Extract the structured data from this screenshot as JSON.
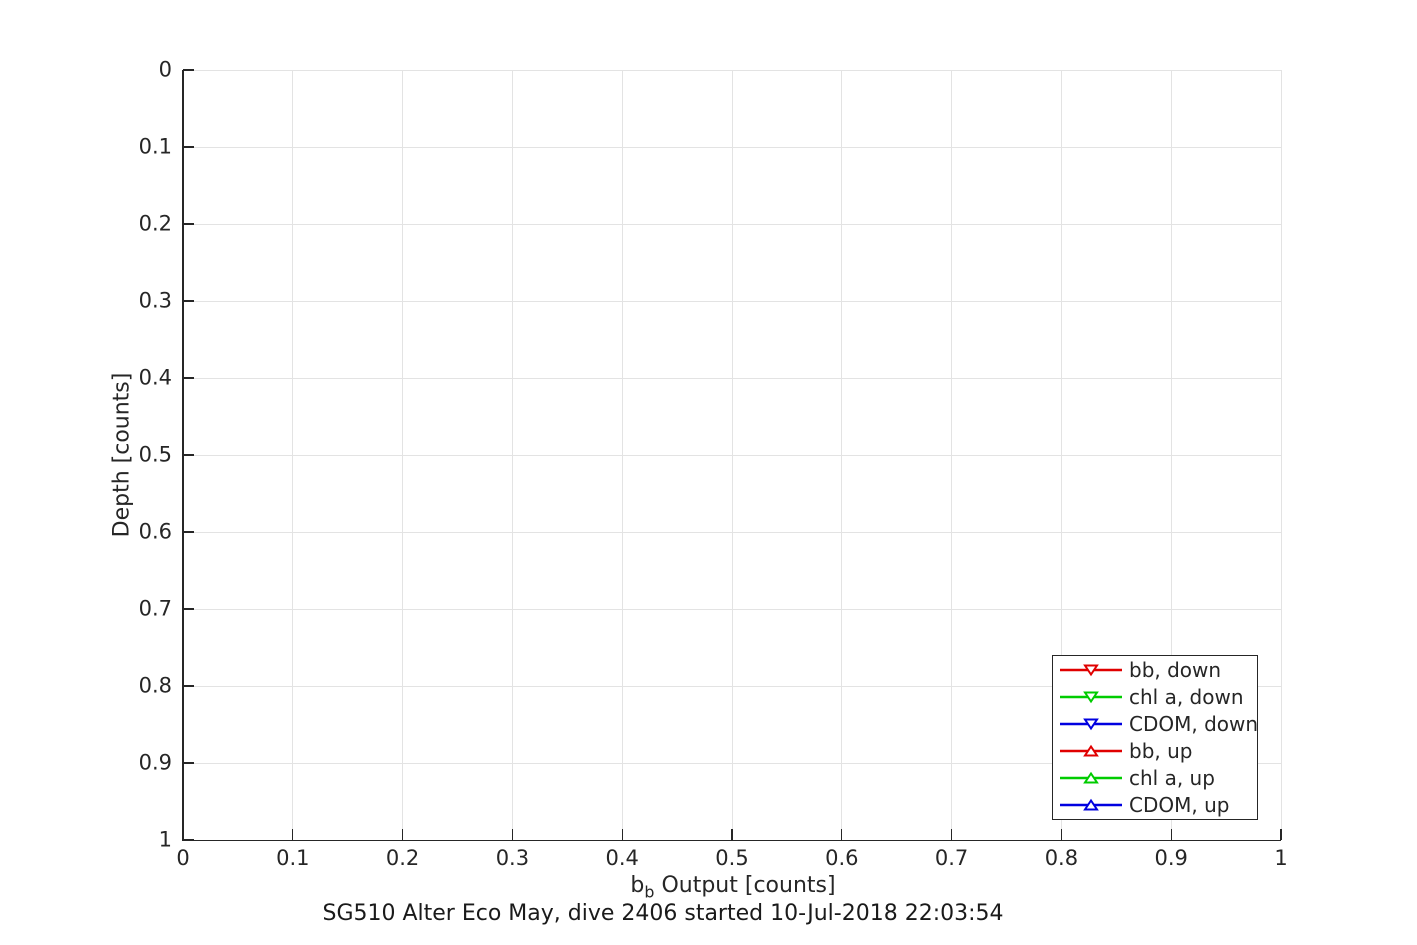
{
  "figure": {
    "background_color": "#ffffff",
    "axis_color": "#262626",
    "grid_color": "#e3e3e3",
    "text_color": "#262626",
    "legend_border_color": "#262626"
  },
  "chart_data": {
    "type": "scatter",
    "title": "SG510 Alter Eco May, dive 2406 started 10-Jul-2018 22:03:54",
    "xlabel": "b_b Output [counts]",
    "xlabel_parts": {
      "base": "b",
      "sub": "b",
      "rest": " Output [counts]"
    },
    "ylabel": "Depth [counts]",
    "xlim": [
      0,
      1
    ],
    "ylim": [
      0,
      1
    ],
    "y_axis_reversed": true,
    "grid": true,
    "x_ticks": [
      "0",
      "0.1",
      "0.2",
      "0.3",
      "0.4",
      "0.5",
      "0.6",
      "0.7",
      "0.8",
      "0.9",
      "1"
    ],
    "y_ticks": [
      "0",
      "0.1",
      "0.2",
      "0.3",
      "0.4",
      "0.5",
      "0.6",
      "0.7",
      "0.8",
      "0.9",
      "1"
    ],
    "legend_position": "inside-bottom-right",
    "series": [
      {
        "name": "bb, down",
        "color": "#e00000",
        "marker": "triangle-down",
        "x": [],
        "y": []
      },
      {
        "name": "chl a, down",
        "color": "#00cc00",
        "marker": "triangle-down",
        "x": [],
        "y": []
      },
      {
        "name": "CDOM, down",
        "color": "#0000e0",
        "marker": "triangle-down",
        "x": [],
        "y": []
      },
      {
        "name": "bb, up",
        "color": "#e00000",
        "marker": "triangle-up",
        "x": [],
        "y": []
      },
      {
        "name": "chl a, up",
        "color": "#00cc00",
        "marker": "triangle-up",
        "x": [],
        "y": []
      },
      {
        "name": "CDOM, up",
        "color": "#0000e0",
        "marker": "triangle-up",
        "x": [],
        "y": []
      }
    ]
  }
}
